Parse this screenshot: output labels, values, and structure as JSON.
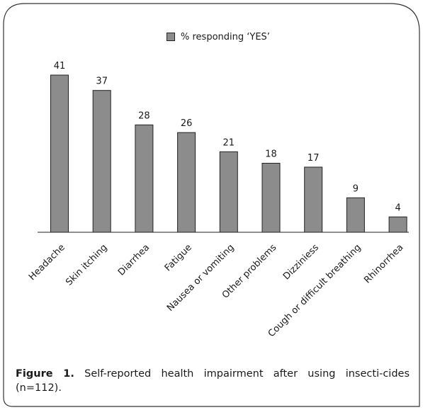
{
  "legend": {
    "label": "% responding ‘YES’"
  },
  "caption": {
    "label": "Figure 1.",
    "text": "Self-reported health impairment after using insecti-cides (n=112)."
  },
  "colors": {
    "bar": "#8c8c8c",
    "bar_stroke": "#222222",
    "frame": "#333333"
  },
  "chart_data": {
    "type": "bar",
    "categories": [
      "Headache",
      "Skin itching",
      "Diarrhea",
      "Fatigue",
      "Nausea or vomiting",
      "Other problems",
      "Dizziniess",
      "Cough or difficult breathing",
      "Rhinorrhea"
    ],
    "series": [
      {
        "name": "% responding ‘YES’",
        "values": [
          41,
          37,
          28,
          26,
          21,
          18,
          17,
          9,
          4
        ]
      }
    ],
    "title": "",
    "xlabel": "",
    "ylabel": "",
    "ylim": [
      0,
      41
    ],
    "grid": false,
    "legend_position": "top-center",
    "data_labels": true
  }
}
